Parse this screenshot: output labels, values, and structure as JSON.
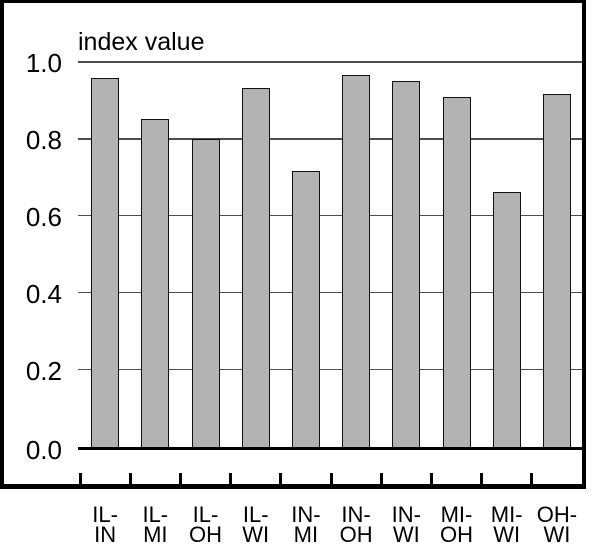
{
  "chart_data": {
    "type": "bar",
    "title": "index value",
    "categories": [
      "IL-\nIN",
      "IL-\nMI",
      "IL-\nOH",
      "IL-\nWI",
      "IN-\nMI",
      "IN-\nOH",
      "IN-\nWI",
      "MI-\nOH",
      "MI-\nWI",
      "OH-\nWI"
    ],
    "values": [
      0.957,
      0.852,
      0.8,
      0.932,
      0.716,
      0.966,
      0.95,
      0.909,
      0.663,
      0.917
    ],
    "xlabel": "",
    "ylabel": "index value",
    "ylim": [
      0.0,
      1.0
    ],
    "yticks": [
      0.0,
      0.2,
      0.4,
      0.6,
      0.8,
      1.0
    ],
    "ytick_labels": [
      "0.0",
      "0.2",
      "0.4",
      "0.6",
      "0.8",
      "1.0"
    ],
    "grid": "horizontal gridlines at each y tick",
    "legend": "none",
    "colors": {
      "bar_fill": "#b3b3b3",
      "bar_border": "#111111",
      "gridline": "#4d4d4d",
      "axis_frame": "#000000",
      "zero_line": "#000000",
      "text": "#000000",
      "background": "#ffffff"
    }
  }
}
